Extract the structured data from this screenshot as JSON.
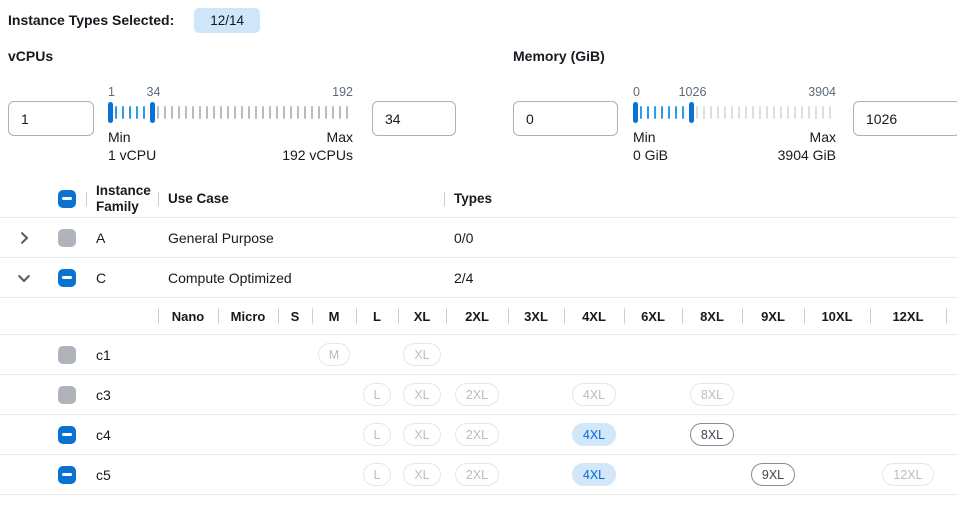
{
  "header": {
    "label": "Instance Types Selected:",
    "badge": "12/14"
  },
  "colors": {
    "accent_blue": "#0972d3",
    "tick_selected": "#2b9ce8",
    "tick_unselected_vcpu": "#b8bcc2",
    "tick_unselected_memory": "#d9e0ea",
    "badge_bg": "#cfe5fa",
    "selected_chip_bg": "#d3e7fa",
    "selected_chip_text": "#0669cf",
    "row_border": "#e6e8ea",
    "text_primary": "#16191f",
    "text_secondary": "#5f6b7a"
  },
  "filters": [
    {
      "id": "vcpus",
      "label": "vCPUs",
      "min_value": "1",
      "max_value": "34",
      "slider": {
        "handle_low_label": "1",
        "handle_high_label": "34",
        "end_label": "192",
        "min_caption": "Min",
        "min_sub": "1 vCPU",
        "max_caption": "Max",
        "max_sub": "192 vCPUs",
        "total_ticks": 35,
        "low_index": 0,
        "high_index": 6
      }
    },
    {
      "id": "memory",
      "label": "Memory (GiB)",
      "min_value": "0",
      "max_value": "1026",
      "slider": {
        "handle_low_label": "0",
        "handle_high_label": "1026",
        "end_label": "3904",
        "min_caption": "Min",
        "min_sub": "0 GiB",
        "max_caption": "Max",
        "max_sub": "3904 GiB",
        "total_ticks": 29,
        "low_index": 0,
        "high_index": 8
      }
    }
  ],
  "table": {
    "columns": {
      "family": "Instance Family",
      "use_case": "Use Case",
      "types": "Types"
    },
    "select_all_state": "indeterminate",
    "size_columns": [
      "Nano",
      "Micro",
      "S",
      "M",
      "L",
      "XL",
      "2XL",
      "3XL",
      "4XL",
      "6XL",
      "8XL",
      "9XL",
      "10XL",
      "12XL"
    ],
    "family_rows": [
      {
        "letter": "A",
        "use_case": "General Purpose",
        "types": "0/0",
        "expanded": false,
        "checkbox": "disabled"
      },
      {
        "letter": "C",
        "use_case": "Compute Optimized",
        "types": "2/4",
        "expanded": true,
        "checkbox": "indeterminate"
      }
    ],
    "instance_rows": [
      {
        "name": "c1",
        "checkbox": "disabled",
        "chips": [
          {
            "size": "M",
            "state": "disabled"
          },
          {
            "size": "XL",
            "state": "disabled"
          }
        ]
      },
      {
        "name": "c3",
        "checkbox": "disabled",
        "chips": [
          {
            "size": "L",
            "state": "disabled"
          },
          {
            "size": "XL",
            "state": "disabled"
          },
          {
            "size": "2XL",
            "state": "disabled"
          },
          {
            "size": "4XL",
            "state": "disabled"
          },
          {
            "size": "8XL",
            "state": "disabled"
          }
        ]
      },
      {
        "name": "c4",
        "checkbox": "indeterminate",
        "chips": [
          {
            "size": "L",
            "state": "disabled"
          },
          {
            "size": "XL",
            "state": "disabled"
          },
          {
            "size": "2XL",
            "state": "disabled"
          },
          {
            "size": "4XL",
            "state": "selected"
          },
          {
            "size": "8XL",
            "state": "enabled"
          }
        ]
      },
      {
        "name": "c5",
        "checkbox": "indeterminate",
        "chips": [
          {
            "size": "L",
            "state": "disabled"
          },
          {
            "size": "XL",
            "state": "disabled"
          },
          {
            "size": "2XL",
            "state": "disabled"
          },
          {
            "size": "4XL",
            "state": "selected"
          },
          {
            "size": "9XL",
            "state": "enabled"
          },
          {
            "size": "12XL",
            "state": "disabled"
          }
        ]
      }
    ]
  }
}
